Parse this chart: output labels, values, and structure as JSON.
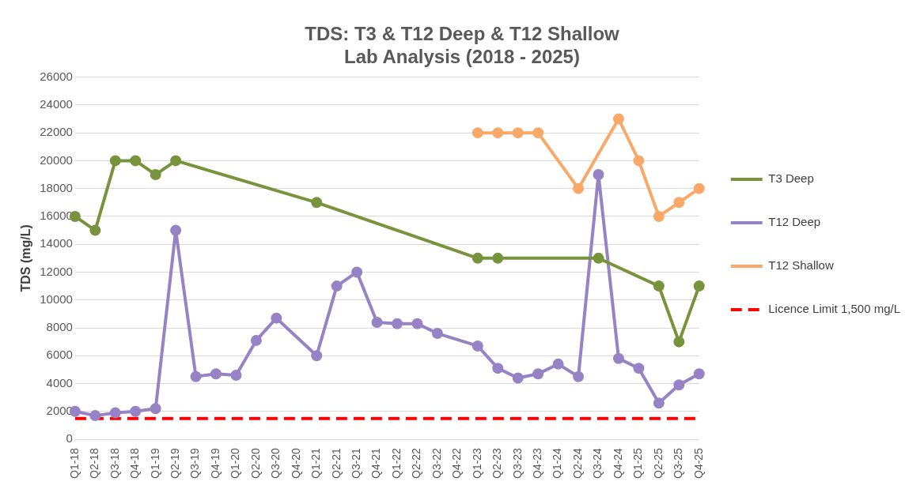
{
  "chart_data": {
    "type": "line",
    "title": "TDS: T3 & T12 Deep & T12 Shallow\nLab Analysis (2018 - 2025)",
    "ylabel": "TDS (mg/L)",
    "categories": [
      "Q1-18",
      "Q2-18",
      "Q3-18",
      "Q4-18",
      "Q1-19",
      "Q2-19",
      "Q3-19",
      "Q4-19",
      "Q1-20",
      "Q2-20",
      "Q3-20",
      "Q4-20",
      "Q1-21",
      "Q2-21",
      "Q3-21",
      "Q4-21",
      "Q1-22",
      "Q2-22",
      "Q3-22",
      "Q4-22",
      "Q1-23",
      "Q2-23",
      "Q3-23",
      "Q4-23",
      "Q1-24",
      "Q2-24",
      "Q3-24",
      "Q4-24",
      "Q1-25",
      "Q2-25",
      "Q3-25",
      "Q4-25"
    ],
    "series": [
      {
        "name": "T3 Deep",
        "color": "#77933c",
        "values": [
          16000,
          15000,
          20000,
          20000,
          19000,
          20000,
          null,
          null,
          null,
          null,
          null,
          null,
          17000,
          null,
          null,
          null,
          null,
          null,
          null,
          null,
          13000,
          13000,
          null,
          null,
          null,
          null,
          13000,
          null,
          null,
          11000,
          7000,
          11000
        ]
      },
      {
        "name": "T12 Deep",
        "color": "#9683c6",
        "values": [
          2000,
          1700,
          1900,
          2000,
          2200,
          15000,
          4500,
          4700,
          4600,
          7100,
          8700,
          null,
          6000,
          11000,
          12000,
          8400,
          8300,
          8300,
          7600,
          null,
          6700,
          5100,
          4400,
          4700,
          5400,
          4500,
          19000,
          5800,
          5100,
          2600,
          3900,
          4700
        ]
      },
      {
        "name": "T12 Shallow",
        "color": "#f9a86a",
        "values": [
          null,
          null,
          null,
          null,
          null,
          null,
          null,
          null,
          null,
          null,
          null,
          null,
          null,
          null,
          null,
          null,
          null,
          null,
          null,
          null,
          22000,
          22000,
          22000,
          22000,
          null,
          18000,
          null,
          23000,
          20000,
          16000,
          17000,
          18000
        ]
      },
      {
        "name": "Licence Limit 1,500 mg/L",
        "color": "#ff0000",
        "line_style": "dashed",
        "marker": "none",
        "values": [
          1500,
          1500,
          1500,
          1500,
          1500,
          1500,
          1500,
          1500,
          1500,
          1500,
          1500,
          1500,
          1500,
          1500,
          1500,
          1500,
          1500,
          1500,
          1500,
          1500,
          1500,
          1500,
          1500,
          1500,
          1500,
          1500,
          1500,
          1500,
          1500,
          1500,
          1500,
          1500
        ]
      }
    ],
    "ylim": [
      0,
      26000
    ],
    "yticks": [
      0,
      2000,
      4000,
      6000,
      8000,
      10000,
      12000,
      14000,
      16000,
      18000,
      20000,
      22000,
      24000,
      26000
    ],
    "grid": "y",
    "legend": "right",
    "marker": "circle",
    "line_style": "solid"
  }
}
